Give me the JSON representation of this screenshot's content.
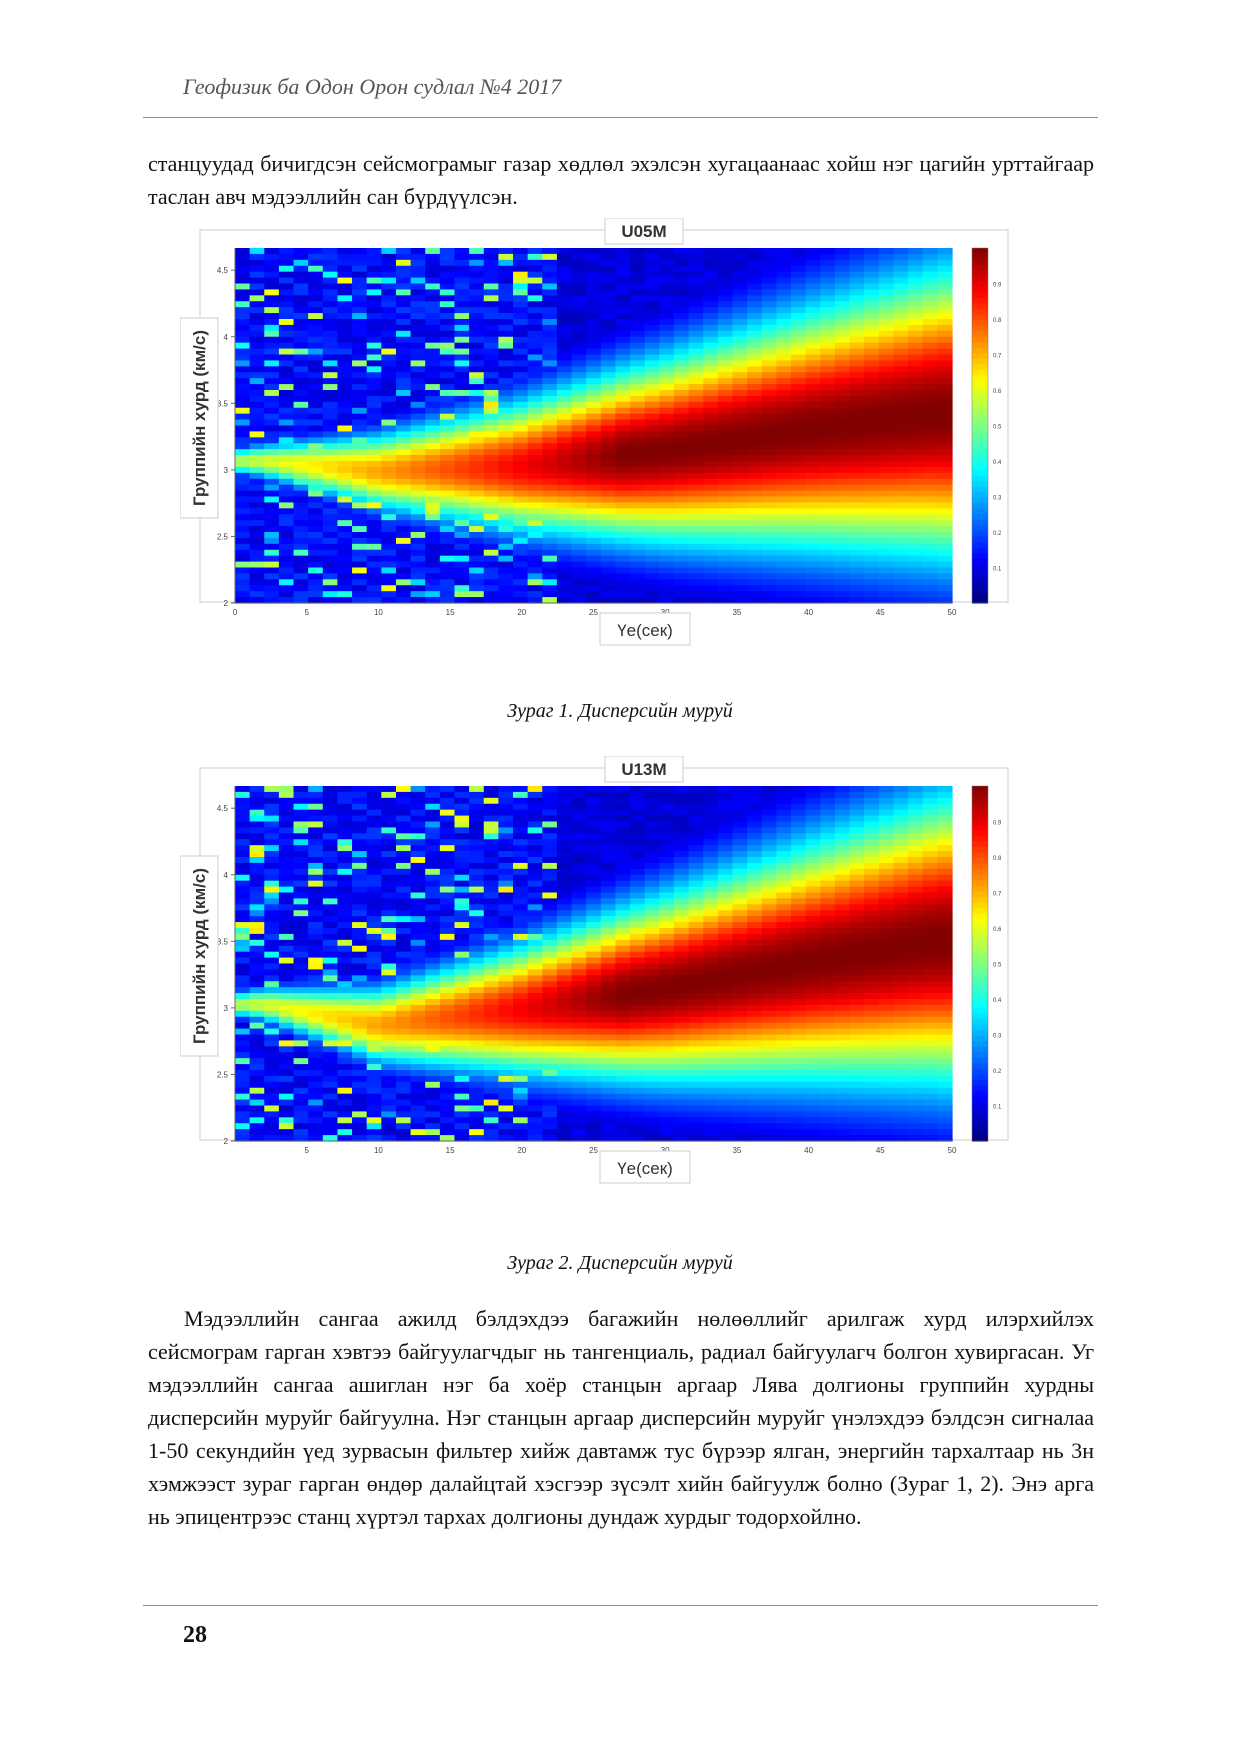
{
  "header": {
    "title": "Геофизик ба Одон Орон судлал №4 2017"
  },
  "intro_text": "станцуудад бичигдсэн сейсмограмыг газар хөдлөл эхэлсэн хугацаанаас хойш нэг цагийн урттайгаар таслан авч мэдээллийн сан бүрдүүлсэн.",
  "figures": [
    {
      "caption": "Зураг 1. Дисперсийн муруй"
    },
    {
      "caption": "Зураг 2. Дисперсийн муруй"
    }
  ],
  "body_text": "Мэдээллийн сангаа ажилд бэлдэхдээ багажийн нөлөөллийг арилгаж хурд илэрхийлэх сейсмограм гарган хэвтээ байгуулагчдыг нь тангенциаль, радиал байгуулагч болгон хувиргасан. Уг мэдээллийн сангаа ашиглан нэг ба хоёр станцын аргаар Лява долгионы группийн хурдны дисперсийн муруйг байгуулна. Нэг станцын аргаар дисперсийн муруйг үнэлэхдээ бэлдсэн сигналаа 1-50 секундийн үед зурвасын фильтер хийж давтамж тус бүрээр ялган, энергийн тархалтаар нь 3н хэмжээст зураг гарган өндөр далайцтай хэсгээр зүсэлт хийн байгуулж болно (Зураг 1, 2). Энэ арга нь эпицентрээс станц хүртэл тархах долгионы дундаж хурдыг тодорхойлно.",
  "page_number": "28",
  "chart_data": [
    {
      "type": "heatmap",
      "title": "U05M",
      "xlabel": "Үе(сек)",
      "ylabel": "Группийн хурд (км/с)",
      "xlim": [
        0,
        50
      ],
      "ylim": [
        2,
        5
      ],
      "x_ticks": [
        "0",
        "5",
        "10",
        "15",
        "20",
        "25",
        "30",
        "35",
        "40",
        "45",
        "50"
      ],
      "y_ticks": [
        "2",
        "2.5",
        "3",
        "3.5",
        "4",
        "4.5"
      ],
      "colorbar_ticks": [
        "0.1",
        "0.2",
        "0.3",
        "0.4",
        "0.5",
        "0.6",
        "0.7",
        "0.8",
        "0.9"
      ],
      "colormap": "jet",
      "ridge_velocity": [
        {
          "period": 2,
          "velocity": 3.35
        },
        {
          "period": 10,
          "velocity": 3.25
        },
        {
          "period": 20,
          "velocity": 3.3
        },
        {
          "period": 30,
          "velocity": 3.45
        },
        {
          "period": 40,
          "velocity": 3.65
        },
        {
          "period": 49,
          "velocity": 3.8
        }
      ]
    },
    {
      "type": "heatmap",
      "title": "U13M",
      "xlabel": "Үе(сек)",
      "ylabel": "Группийн хурд (км/с)",
      "xlim": [
        0,
        50
      ],
      "ylim": [
        2,
        5
      ],
      "x_ticks": [
        "5",
        "10",
        "15",
        "20",
        "25",
        "30",
        "35",
        "40",
        "45",
        "50"
      ],
      "y_ticks": [
        "2",
        "2.5",
        "3",
        "3.5",
        "4",
        "4.5"
      ],
      "colorbar_ticks": [
        "0.1",
        "0.2",
        "0.3",
        "0.4",
        "0.5",
        "0.6",
        "0.7",
        "0.8",
        "0.9"
      ],
      "colormap": "jet",
      "ridge_velocity": [
        {
          "period": 2,
          "velocity": 3.3
        },
        {
          "period": 10,
          "velocity": 3.1
        },
        {
          "period": 20,
          "velocity": 3.25
        },
        {
          "period": 30,
          "velocity": 3.45
        },
        {
          "period": 40,
          "velocity": 3.7
        },
        {
          "period": 49,
          "velocity": 3.9
        }
      ]
    }
  ]
}
